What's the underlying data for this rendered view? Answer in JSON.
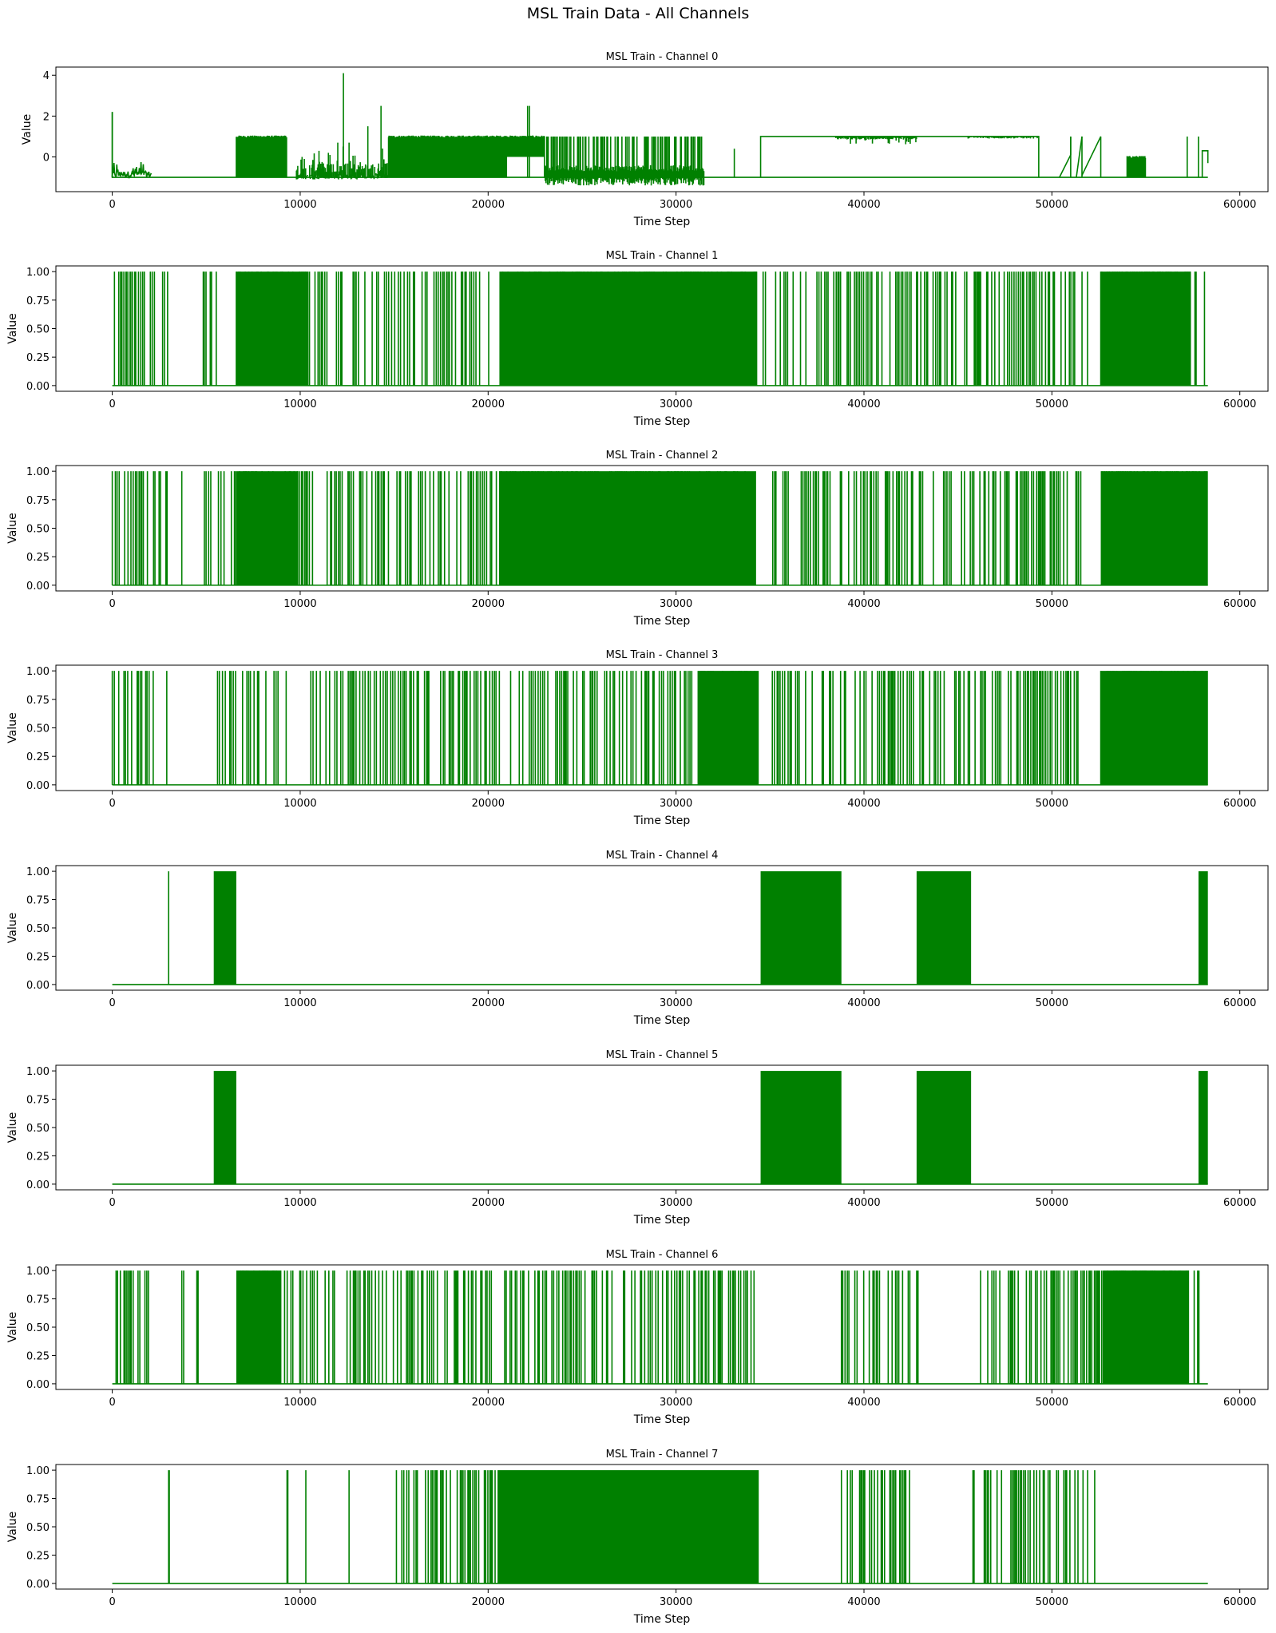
{
  "suptitle": "MSL Train Data - All Channels",
  "colors": {
    "line": "#008000",
    "axes": "#000000"
  },
  "chart_data": [
    {
      "type": "line",
      "title": "MSL Train - Channel 0",
      "xlabel": "Time Step",
      "ylabel": "Value",
      "xlim": [
        -3000,
        61500
      ],
      "ylim": [
        -1.7,
        4.4
      ],
      "xticks": [
        0,
        10000,
        20000,
        30000,
        40000,
        50000,
        60000
      ],
      "yticks": [
        0,
        2,
        4
      ],
      "grid": false,
      "x_end": 58300,
      "series": [
        {
          "baseline": -1.0,
          "points": [
            [
              0,
              2.2
            ],
            [
              100,
              -0.9
            ],
            [
              200,
              -0.4
            ],
            [
              300,
              -0.9
            ],
            [
              350,
              0.8
            ],
            [
              600,
              -0.8
            ],
            [
              700,
              -0.4
            ],
            [
              800,
              0.9
            ],
            [
              1000,
              -0.8
            ],
            [
              1200,
              -0.6
            ],
            [
              1500,
              -0.7
            ],
            [
              1800,
              -0.9
            ],
            [
              1900,
              -0.3
            ],
            [
              2000,
              -1.0
            ],
            [
              6500,
              -1.0
            ],
            [
              12300,
              4.1
            ],
            [
              14300,
              2.5
            ],
            [
              22200,
              2.5
            ],
            [
              33100,
              0.4
            ],
            [
              34500,
              1.0
            ],
            [
              49300,
              1.0
            ],
            [
              51000,
              1.0
            ],
            [
              52600,
              1.0
            ]
          ]
        }
      ],
      "bands": [
        [
          6600,
          9300,
          -1.0,
          1.0
        ],
        [
          14700,
          21000,
          -1.0,
          1.0
        ],
        [
          21000,
          23000,
          0.0,
          1.0
        ],
        [
          23000,
          25000,
          -0.9,
          -0.7
        ],
        [
          54000,
          55000,
          -1.0,
          0.0
        ]
      ],
      "spikes": [
        [
          10100,
          0.0
        ],
        [
          11000,
          0.3
        ],
        [
          11500,
          0.2
        ],
        [
          12000,
          0.7
        ],
        [
          12600,
          0.7
        ],
        [
          13600,
          1.5
        ],
        [
          22100,
          2.5
        ],
        [
          26000,
          1.0
        ],
        [
          27500,
          1.0
        ],
        [
          28500,
          1.0
        ],
        [
          29500,
          1.0
        ],
        [
          31000,
          1.0
        ],
        [
          33100,
          0.4
        ],
        [
          51000,
          1.0
        ],
        [
          51600,
          1.0
        ],
        [
          57200,
          1.0
        ],
        [
          57800,
          1.0
        ]
      ]
    },
    {
      "type": "line",
      "title": "MSL Train - Channel 1",
      "xlabel": "Time Step",
      "ylabel": "Value",
      "xlim": [
        -3000,
        61500
      ],
      "ylim": [
        -0.05,
        1.05
      ],
      "xticks": [
        0,
        10000,
        20000,
        30000,
        40000,
        50000,
        60000
      ],
      "yticks": [
        0.0,
        0.25,
        0.5,
        0.75,
        1.0
      ],
      "grid": false,
      "x_end": 58300,
      "spikes_range": [
        [
          0,
          3000
        ],
        [
          4500,
          5600
        ],
        [
          6600,
          34800
        ],
        [
          35300,
          51900
        ],
        [
          52600,
          58300
        ]
      ],
      "blocks": [
        [
          6600,
          10400
        ],
        [
          20600,
          34300
        ],
        [
          52600,
          57400
        ]
      ]
    },
    {
      "type": "line",
      "title": "MSL Train - Channel 2",
      "xlabel": "Time Step",
      "ylabel": "Value",
      "xlim": [
        -3000,
        61500
      ],
      "ylim": [
        -0.05,
        1.05
      ],
      "xticks": [
        0,
        10000,
        20000,
        30000,
        40000,
        50000,
        60000
      ],
      "yticks": [
        0.0,
        0.25,
        0.5,
        0.75,
        1.0
      ],
      "grid": false,
      "x_end": 58300,
      "spikes_range": [
        [
          0,
          3000
        ],
        [
          3700,
          3800
        ],
        [
          4900,
          6400
        ],
        [
          6500,
          34400
        ],
        [
          35000,
          52000
        ],
        [
          52600,
          58300
        ]
      ],
      "blocks": [
        [
          6600,
          9900
        ],
        [
          20600,
          34200
        ],
        [
          52600,
          58300
        ]
      ]
    },
    {
      "type": "line",
      "title": "MSL Train - Channel 3",
      "xlabel": "Time Step",
      "ylabel": "Value",
      "xlim": [
        -3000,
        61500
      ],
      "ylim": [
        -0.05,
        1.05
      ],
      "xticks": [
        0,
        10000,
        20000,
        30000,
        40000,
        50000,
        60000
      ],
      "yticks": [
        0.0,
        0.25,
        0.5,
        0.75,
        1.0
      ],
      "grid": false,
      "x_end": 58300,
      "spikes_range": [
        [
          0,
          2200
        ],
        [
          2900,
          3000
        ],
        [
          5500,
          9300
        ],
        [
          10500,
          34500
        ],
        [
          35000,
          51400
        ],
        [
          52600,
          58300
        ]
      ],
      "blocks": [
        [
          31200,
          34400
        ],
        [
          52600,
          58300
        ]
      ]
    },
    {
      "type": "line",
      "title": "MSL Train - Channel 4",
      "xlabel": "Time Step",
      "ylabel": "Value",
      "xlim": [
        -3000,
        61500
      ],
      "ylim": [
        -0.05,
        1.05
      ],
      "xticks": [
        0,
        10000,
        20000,
        30000,
        40000,
        50000,
        60000
      ],
      "yticks": [
        0.0,
        0.25,
        0.5,
        0.75,
        1.0
      ],
      "grid": false,
      "x_end": 58300,
      "spikes_range": [
        [
          3000,
          3050
        ]
      ],
      "blocks": [
        [
          5400,
          6600
        ],
        [
          34500,
          38800
        ],
        [
          42800,
          45700
        ],
        [
          57800,
          58300
        ]
      ]
    },
    {
      "type": "line",
      "title": "MSL Train - Channel 5",
      "xlabel": "Time Step",
      "ylabel": "Value",
      "xlim": [
        -3000,
        61500
      ],
      "ylim": [
        -0.05,
        1.05
      ],
      "xticks": [
        0,
        10000,
        20000,
        30000,
        40000,
        50000,
        60000
      ],
      "yticks": [
        0.0,
        0.25,
        0.5,
        0.75,
        1.0
      ],
      "grid": false,
      "x_end": 58300,
      "spikes_range": [],
      "blocks": [
        [
          5400,
          6600
        ],
        [
          34500,
          38800
        ],
        [
          42800,
          45700
        ],
        [
          57800,
          58300
        ]
      ]
    },
    {
      "type": "line",
      "title": "MSL Train - Channel 6",
      "xlabel": "Time Step",
      "ylabel": "Value",
      "xlim": [
        -3000,
        61500
      ],
      "ylim": [
        -0.05,
        1.05
      ],
      "xticks": [
        0,
        10000,
        20000,
        30000,
        40000,
        50000,
        60000
      ],
      "yticks": [
        0.0,
        0.25,
        0.5,
        0.75,
        1.0
      ],
      "grid": false,
      "x_end": 58300,
      "spikes_range": [
        [
          0,
          2300
        ],
        [
          3700,
          3800
        ],
        [
          4500,
          4600
        ],
        [
          6600,
          34400
        ],
        [
          38800,
          42900
        ],
        [
          46000,
          58000
        ]
      ],
      "blocks": [
        [
          6600,
          9000
        ],
        [
          52800,
          57300
        ]
      ]
    },
    {
      "type": "line",
      "title": "MSL Train - Channel 7",
      "xlabel": "Time Step",
      "ylabel": "Value",
      "xlim": [
        -3000,
        61500
      ],
      "ylim": [
        -0.05,
        1.05
      ],
      "xticks": [
        0,
        10000,
        20000,
        30000,
        40000,
        50000,
        60000
      ],
      "yticks": [
        0.0,
        0.25,
        0.5,
        0.75,
        1.0
      ],
      "grid": false,
      "x_end": 58300,
      "spikes_range": [
        [
          3000,
          3050
        ],
        [
          9300,
          9350
        ],
        [
          10300,
          10350
        ],
        [
          12600,
          12650
        ],
        [
          15000,
          20500
        ],
        [
          38800,
          42900
        ],
        [
          45800,
          52600
        ]
      ],
      "blocks": [
        [
          20500,
          34400
        ]
      ]
    }
  ]
}
